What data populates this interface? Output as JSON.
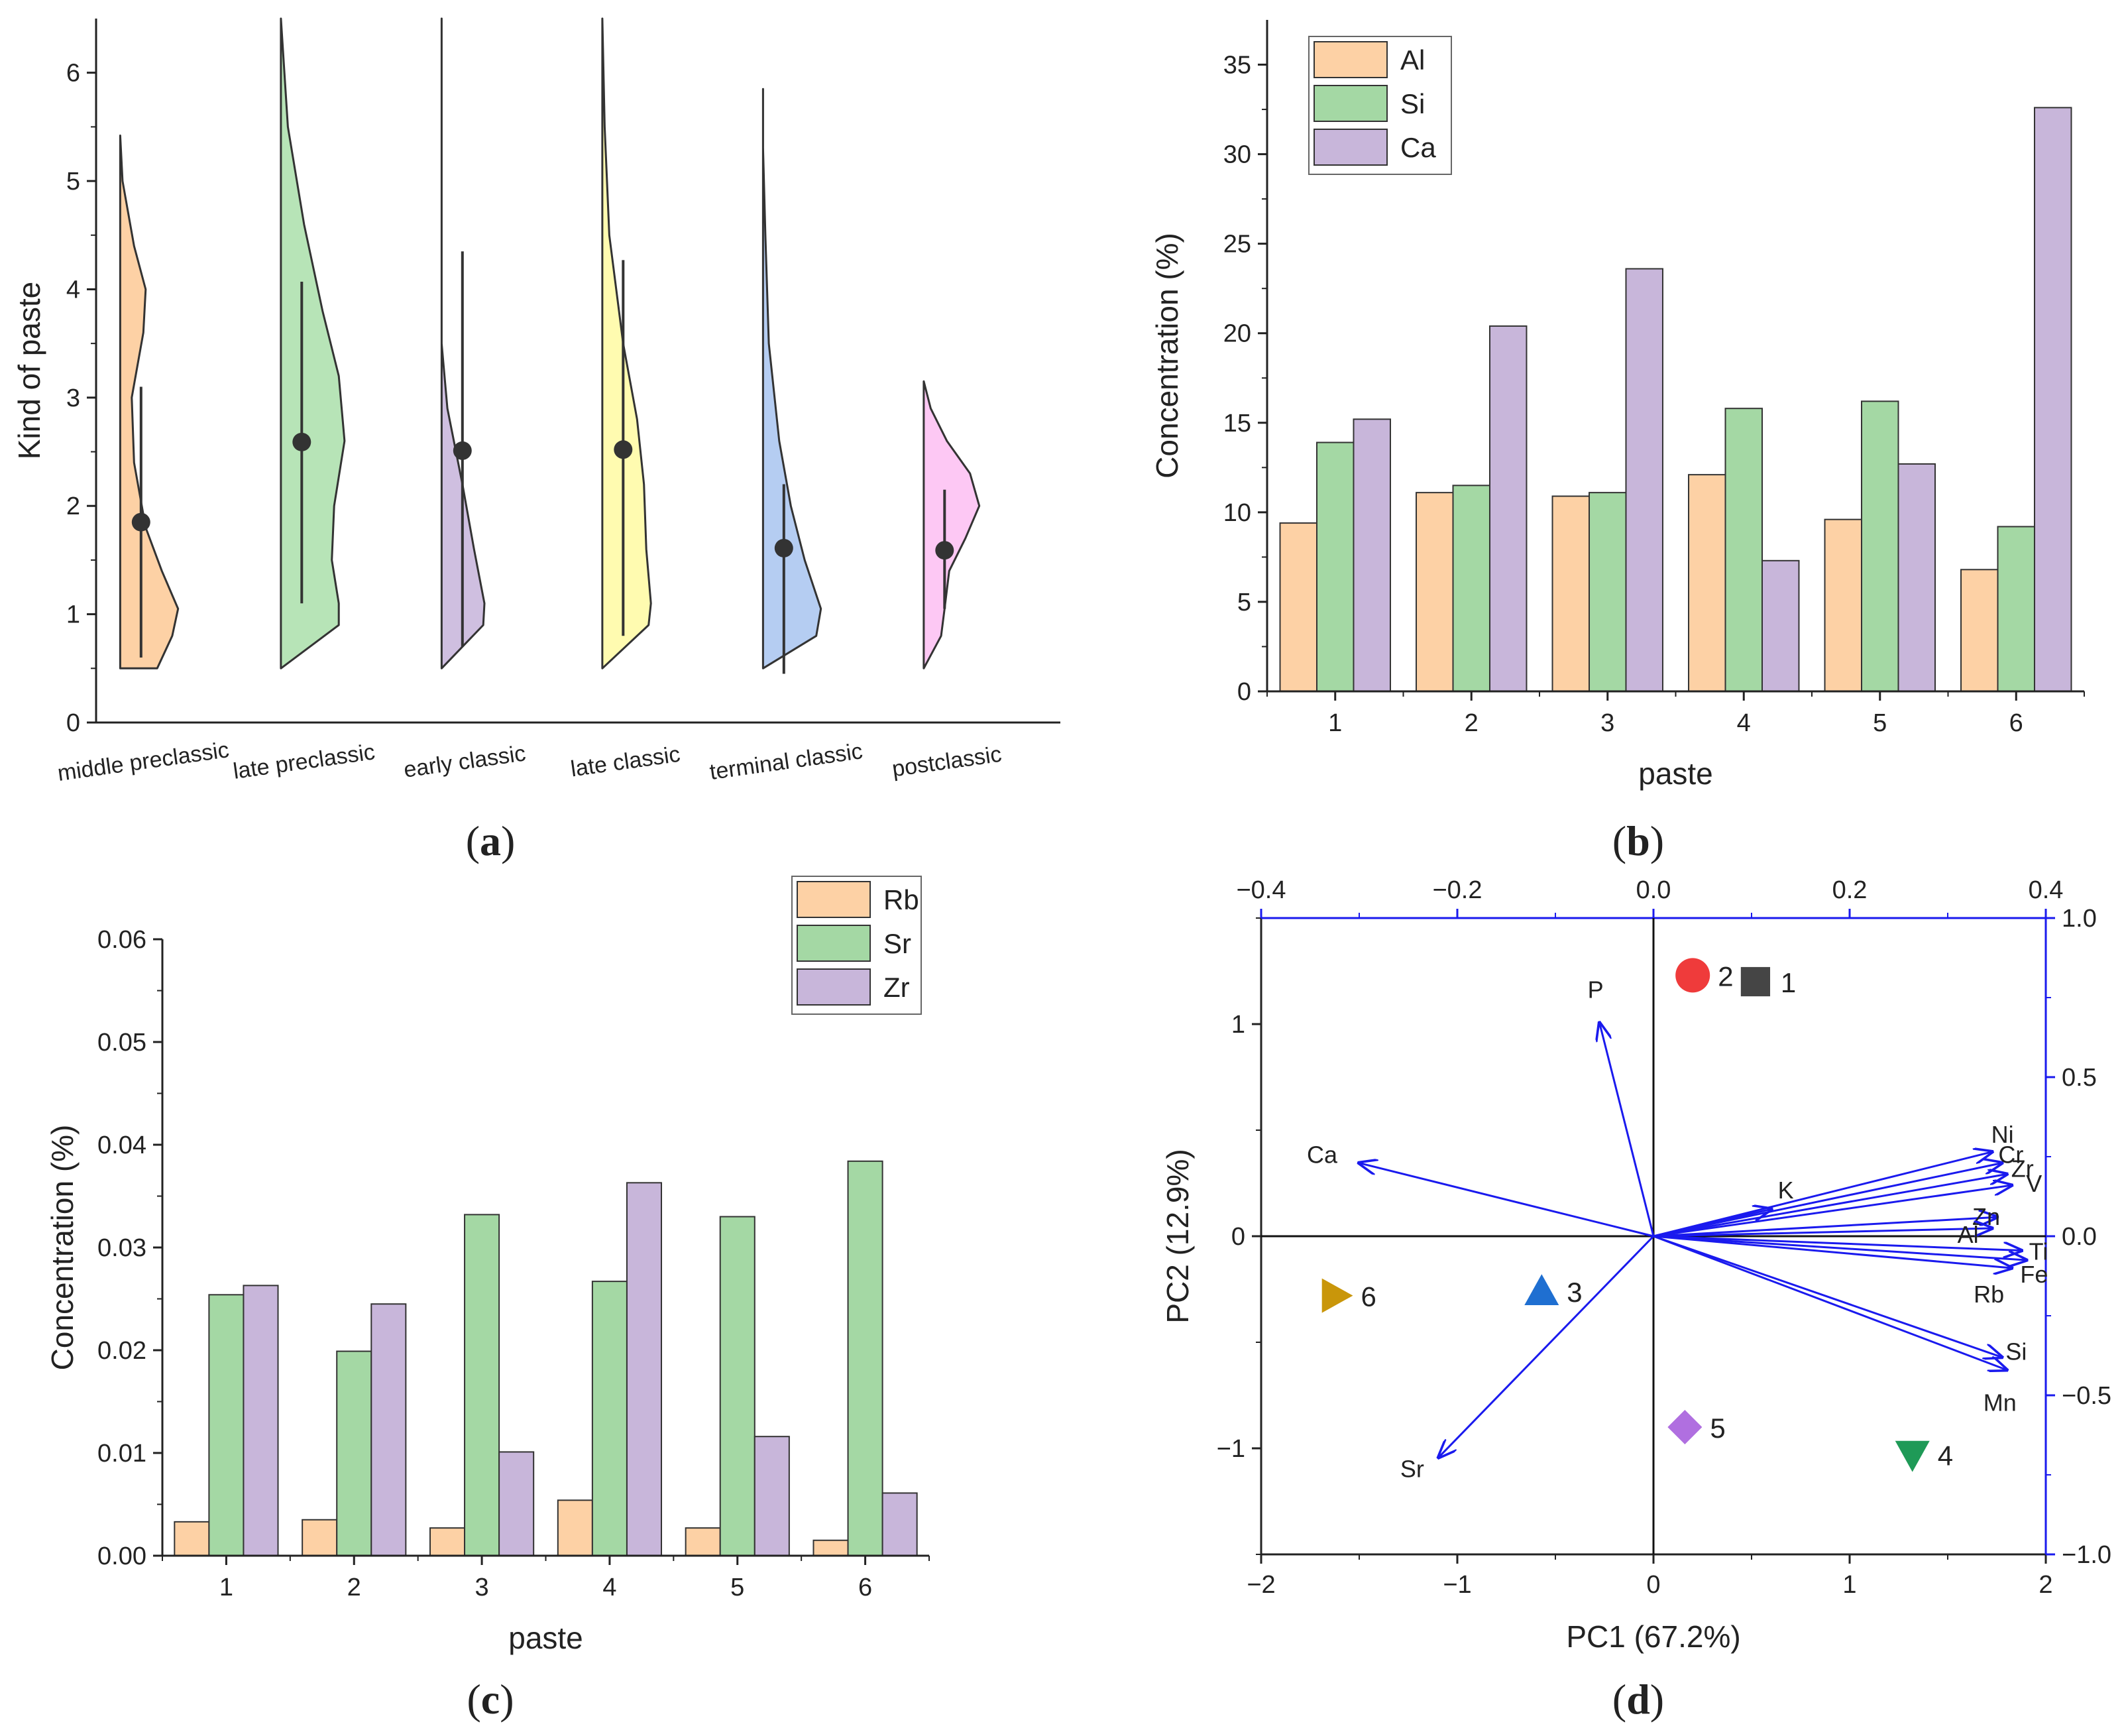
{
  "panels": {
    "a": {
      "label_letter": "a"
    },
    "b": {
      "label_letter": "b"
    },
    "c": {
      "label_letter": "c"
    },
    "d": {
      "label_letter": "d"
    }
  },
  "chart_data": [
    {
      "panel": "a",
      "type": "violin",
      "title": "",
      "ylabel": "Kind of paste",
      "xlabel": "",
      "ylim": [
        0,
        6.5
      ],
      "yticks": [
        0,
        1,
        2,
        3,
        4,
        5,
        6
      ],
      "categories": [
        "middle preclassic",
        "late preclassic",
        "early classic",
        "late classic",
        "terminal classic",
        "postclassic"
      ],
      "colors": [
        "#fdd1a5",
        "#b7e4b7",
        "#cfbfe0",
        "#fffbb0",
        "#b5cdf2",
        "#fdc8f4"
      ],
      "means": [
        1.85,
        2.59,
        2.51,
        2.52,
        1.61,
        1.59
      ],
      "whisker_low": [
        0.6,
        1.1,
        0.7,
        0.8,
        0.45,
        1.05
      ],
      "whisker_high": [
        3.1,
        4.07,
        4.35,
        4.27,
        2.2,
        2.15
      ],
      "kde_min": [
        0.5,
        0.5,
        0.5,
        0.5,
        0.5,
        0.5
      ],
      "kde_max": [
        5.42,
        6.5,
        6.5,
        6.5,
        5.85,
        3.15
      ]
    },
    {
      "panel": "b",
      "type": "bar",
      "title": "",
      "xlabel": "paste",
      "ylabel": "Concentration (%)",
      "ylim": [
        0,
        37.5
      ],
      "yticks": [
        0,
        5,
        10,
        15,
        20,
        25,
        30,
        35
      ],
      "categories": [
        "1",
        "2",
        "3",
        "4",
        "5",
        "6"
      ],
      "legend_position": "top-left",
      "series": [
        {
          "name": "Al",
          "color": "#fdd1a5",
          "values": [
            9.4,
            11.1,
            10.9,
            12.1,
            9.6,
            6.8
          ]
        },
        {
          "name": "Si",
          "color": "#a4d8a4",
          "values": [
            13.9,
            11.5,
            11.1,
            15.8,
            16.2,
            9.2
          ]
        },
        {
          "name": "Ca",
          "color": "#c8b6da",
          "values": [
            15.2,
            20.4,
            23.6,
            7.3,
            12.7,
            32.6
          ]
        }
      ]
    },
    {
      "panel": "c",
      "type": "bar",
      "title": "",
      "xlabel": "paste",
      "ylabel": "Concentration (%)",
      "ylim": [
        0,
        0.06
      ],
      "yticks": [
        "0.00",
        "0.01",
        "0.02",
        "0.03",
        "0.04",
        "0.05",
        "0.06"
      ],
      "categories": [
        "1",
        "2",
        "3",
        "4",
        "5",
        "6"
      ],
      "legend_position": "top-right",
      "series": [
        {
          "name": "Rb",
          "color": "#fdd1a5",
          "values": [
            0.0033,
            0.0035,
            0.0027,
            0.0054,
            0.0027,
            0.0015
          ]
        },
        {
          "name": "Sr",
          "color": "#a4d8a4",
          "values": [
            0.0254,
            0.0199,
            0.0332,
            0.0267,
            0.033,
            0.0384
          ]
        },
        {
          "name": "Zr",
          "color": "#c8b6da",
          "values": [
            0.0263,
            0.0245,
            0.0101,
            0.0363,
            0.0116,
            0.0061
          ]
        }
      ]
    },
    {
      "panel": "d",
      "type": "scatter",
      "title": "",
      "xlabel": "PC1 (67.2%)",
      "ylabel": "PC2 (12.9%)",
      "xlim": [
        -2,
        2
      ],
      "ylim": [
        -1.5,
        1.5
      ],
      "xticks": [
        "−2",
        "−1",
        "0",
        "1",
        "2"
      ],
      "yticks": [
        "−1",
        "0",
        "1"
      ],
      "x2lim": [
        -0.4,
        0.4
      ],
      "y2lim": [
        -1.0,
        1.0
      ],
      "x2ticks": [
        "−0.4",
        "−0.2",
        "0.0",
        "0.2",
        "0.4"
      ],
      "y2ticks": [
        "−1.0",
        "−0.5",
        "0.0",
        "0.5",
        "1.0"
      ],
      "points": [
        {
          "label": "1",
          "x": 0.52,
          "y": 1.2,
          "marker": "square",
          "color": "#454545"
        },
        {
          "label": "2",
          "x": 0.2,
          "y": 1.23,
          "marker": "circle",
          "color": "#ef3b3b"
        },
        {
          "label": "3",
          "x": -0.57,
          "y": -0.26,
          "marker": "triangle-up",
          "color": "#1f6fd1"
        },
        {
          "label": "4",
          "x": 1.32,
          "y": -1.03,
          "marker": "triangle-down",
          "color": "#1f9a57"
        },
        {
          "label": "5",
          "x": 0.16,
          "y": -0.9,
          "marker": "diamond",
          "color": "#b06fe0"
        },
        {
          "label": "6",
          "x": -1.62,
          "y": -0.28,
          "marker": "triangle-right",
          "color": "#c9960a"
        }
      ],
      "loadings_color": "#1a1aee",
      "loadings": [
        {
          "name": "P",
          "x": -0.055,
          "y": 0.67
        },
        {
          "name": "Ca",
          "x": -0.3,
          "y": 0.23
        },
        {
          "name": "Sr",
          "x": -0.219,
          "y": -0.695
        },
        {
          "name": "K",
          "x": 0.12,
          "y": 0.085
        },
        {
          "name": "Ni",
          "x": 0.345,
          "y": 0.265
        },
        {
          "name": "Cr",
          "x": 0.355,
          "y": 0.23
        },
        {
          "name": "Zr",
          "x": 0.36,
          "y": 0.195
        },
        {
          "name": "V",
          "x": 0.365,
          "y": 0.16
        },
        {
          "name": "Zn",
          "x": 0.35,
          "y": 0.06
        },
        {
          "name": "Al",
          "x": 0.345,
          "y": 0.025
        },
        {
          "name": "Ti",
          "x": 0.375,
          "y": -0.045
        },
        {
          "name": "Fe",
          "x": 0.38,
          "y": -0.075
        },
        {
          "name": "Rb",
          "x": 0.365,
          "y": -0.1
        },
        {
          "name": "Si",
          "x": 0.355,
          "y": -0.38
        },
        {
          "name": "Mn",
          "x": 0.36,
          "y": -0.42
        }
      ]
    }
  ]
}
